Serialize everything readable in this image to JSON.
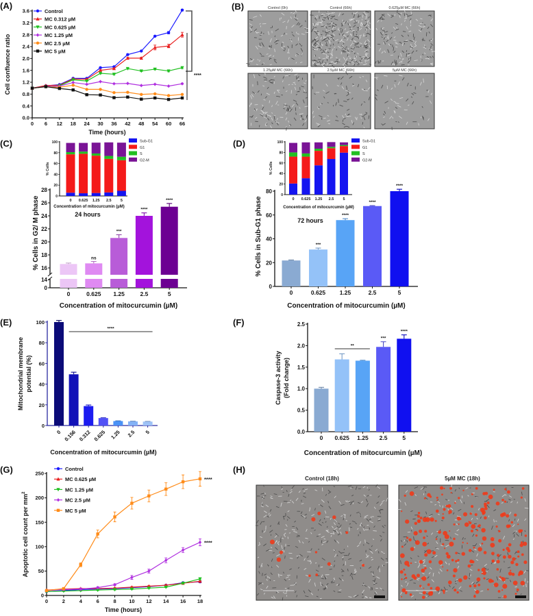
{
  "panels": {
    "labels": [
      "(A)",
      "(B)",
      "(C)",
      "(D)",
      "(E)",
      "(F)",
      "(G)",
      "(H)"
    ]
  },
  "images": {
    "B": {
      "titles": [
        "Control (0h)",
        "Control (66h)",
        "0.625µM MC (66h)",
        "1.25µM MC (66h)",
        "2.5µM MC (66h)",
        "5µM MC (66h)"
      ]
    },
    "H": {
      "titles": [
        "Control (18h)",
        "5µM MC (18h)"
      ]
    }
  },
  "chart_data": [
    {
      "type": "line",
      "panel": "A",
      "xlabel": "Time (hours)",
      "ylabel": "Cell confluence ratio",
      "xlim": [
        0,
        66
      ],
      "ylim": [
        0,
        3.6
      ],
      "xticks": [
        "0",
        "6",
        "12",
        "18",
        "24",
        "30",
        "36",
        "42",
        "48",
        "54",
        "60",
        "66"
      ],
      "yticks": [
        "0.0",
        "0.4",
        "0.8",
        "1.2",
        "1.6",
        "2.0",
        "2.4",
        "2.8",
        "3.2",
        "3.6"
      ],
      "x": [
        0,
        6,
        12,
        18,
        24,
        30,
        36,
        42,
        48,
        54,
        60,
        66
      ],
      "significance": "****",
      "legend_position": "top-left",
      "series": [
        {
          "name": "Control",
          "color": "#1a1aff",
          "marker": "circle",
          "values": [
            1.0,
            1.08,
            1.12,
            1.33,
            1.33,
            1.69,
            1.72,
            2.13,
            2.25,
            2.75,
            2.87,
            3.63
          ],
          "errors": [
            0,
            0.01,
            0.01,
            0.02,
            0.02,
            0.02,
            0.02,
            0.02,
            0.02,
            0.02,
            0.04,
            0.03
          ]
        },
        {
          "name": "MC 0.312 µM",
          "color": "#e82020",
          "marker": "triangle-up",
          "values": [
            1.0,
            1.09,
            1.1,
            1.31,
            1.3,
            1.6,
            1.66,
            2.01,
            2.01,
            2.37,
            2.42,
            2.8
          ],
          "errors": [
            0,
            0.01,
            0.01,
            0.02,
            0.02,
            0.02,
            0.02,
            0.03,
            0.03,
            0.08,
            0.06,
            0.08
          ]
        },
        {
          "name": "MC 0.625 µM",
          "color": "#20c020",
          "marker": "triangle-down",
          "values": [
            1.0,
            1.05,
            1.08,
            1.28,
            1.24,
            1.5,
            1.47,
            1.66,
            1.58,
            1.64,
            1.58,
            1.69
          ],
          "errors": [
            0,
            0.01,
            0.01,
            0.01,
            0.01,
            0.02,
            0.02,
            0.02,
            0.02,
            0.02,
            0.03,
            0.03
          ]
        },
        {
          "name": "MC 1.25 µM",
          "color": "#b030e0",
          "marker": "diamond",
          "values": [
            1.0,
            1.06,
            1.07,
            1.19,
            1.13,
            1.22,
            1.15,
            1.16,
            1.09,
            1.13,
            1.07,
            1.15
          ],
          "errors": [
            0,
            0.01,
            0.01,
            0.01,
            0.01,
            0.01,
            0.01,
            0.01,
            0.01,
            0.01,
            0.01,
            0.02
          ]
        },
        {
          "name": "MC 2.5 µM",
          "color": "#ff8c1a",
          "marker": "circle",
          "values": [
            1.0,
            1.05,
            1.03,
            1.1,
            0.96,
            0.96,
            0.85,
            0.86,
            0.79,
            0.81,
            0.75,
            0.79
          ],
          "errors": [
            0,
            0.01,
            0.01,
            0.01,
            0.01,
            0.01,
            0.01,
            0.01,
            0.01,
            0.01,
            0.02,
            0.02
          ]
        },
        {
          "name": "MC 5 µM",
          "color": "#111111",
          "marker": "square",
          "values": [
            1.0,
            1.05,
            0.99,
            0.94,
            0.78,
            0.77,
            0.68,
            0.7,
            0.63,
            0.67,
            0.62,
            0.67
          ],
          "errors": [
            0,
            0.01,
            0.01,
            0.01,
            0.01,
            0.01,
            0.01,
            0.01,
            0.01,
            0.01,
            0.01,
            0.01
          ]
        }
      ]
    },
    {
      "type": "bar",
      "panel": "C",
      "xlabel": "Concentration of mitocurcumin (µM)",
      "ylabel": "% Cells in G2/ M phase",
      "annotation": "24 hours",
      "categories": [
        "0",
        "0.625",
        "1.25",
        "2.5",
        "5"
      ],
      "values": [
        16.6,
        16.7,
        20.6,
        24.0,
        25.4
      ],
      "errors": [
        0.15,
        0.3,
        0.5,
        0.45,
        0.5
      ],
      "significance": [
        "",
        "ns",
        "***",
        "****",
        "****"
      ],
      "colors": [
        "#ecc6f6",
        "#df8af2",
        "#b85cd8",
        "#a313dc",
        "#6c0092"
      ],
      "ylim": [
        0,
        28
      ],
      "axis_break": [
        14,
        16
      ],
      "yticks": [
        "0",
        "14",
        "16",
        "18",
        "20",
        "22",
        "24",
        "26",
        "28"
      ]
    },
    {
      "type": "bar",
      "stacked": true,
      "panel": "C-inset",
      "xlabel": "Concentration of mitocurcumin (µM)",
      "ylabel": "% Cells",
      "categories": [
        "0",
        "0.625",
        "1.25",
        "2.5",
        "5"
      ],
      "ylim": [
        0,
        100
      ],
      "yticks": [
        "0",
        "20",
        "40",
        "60",
        "80",
        "100"
      ],
      "legend_position": "right",
      "series": [
        {
          "name": "Sub-G1",
          "color": "#1414f0",
          "values": [
            6,
            5,
            5.5,
            6.5,
            9.5
          ]
        },
        {
          "name": "G1",
          "color": "#f41a1a",
          "values": [
            71,
            73,
            69,
            62,
            56.5
          ]
        },
        {
          "name": "S",
          "color": "#22c022",
          "values": [
            4,
            4,
            4,
            5.5,
            6.5
          ]
        },
        {
          "name": "G2-M",
          "color": "#7a1496",
          "values": [
            17,
            16,
            20,
            25,
            26
          ]
        }
      ]
    },
    {
      "type": "bar",
      "panel": "D",
      "xlabel": "Concentration of mitocurcumin (µM)",
      "ylabel": "% Cells in Sub-G1 phase",
      "annotation": "72 hours",
      "categories": [
        "0",
        "0.625",
        "1.25",
        "2.5",
        "5"
      ],
      "values": [
        21.8,
        31.0,
        55.7,
        67.5,
        80.0
      ],
      "errors": [
        0.4,
        1.2,
        1.2,
        0.4,
        1.6
      ],
      "significance": [
        "",
        "***",
        "****",
        "****",
        "****"
      ],
      "colors": [
        "#8aaad2",
        "#94c2f8",
        "#58a4f6",
        "#5a5af6",
        "#1010f0"
      ],
      "ylim": [
        0,
        80
      ],
      "yticks": [
        "0",
        "20",
        "40",
        "60",
        "80"
      ]
    },
    {
      "type": "bar",
      "stacked": true,
      "panel": "D-inset",
      "xlabel": "Concentration of mitocurcumin (µM)",
      "ylabel": "% Cells",
      "categories": [
        "0",
        "0.625",
        "1.25",
        "2.5",
        "5"
      ],
      "ylim": [
        0,
        100
      ],
      "yticks": [
        "0",
        "20",
        "40",
        "60",
        "80",
        "100"
      ],
      "legend_position": "right",
      "series": [
        {
          "name": "Sub-G1",
          "color": "#1414f0",
          "values": [
            21,
            31,
            55.5,
            67.5,
            79.5
          ]
        },
        {
          "name": "G1",
          "color": "#f41a1a",
          "values": [
            51,
            41,
            27.5,
            20.5,
            12.5
          ]
        },
        {
          "name": "S",
          "color": "#22c022",
          "values": [
            8,
            6,
            4,
            2.5,
            2
          ]
        },
        {
          "name": "G2-M",
          "color": "#7a1496",
          "values": [
            18,
            21,
            12,
            9,
            5
          ]
        }
      ]
    },
    {
      "type": "bar",
      "panel": "E",
      "xlabel": "Concentration of mitocurcumin (µM)",
      "ylabel": [
        "Mitochondrial membrane",
        "potential (%)"
      ],
      "categories": [
        "0",
        "0.156",
        "0.312",
        "0.625",
        "1.25",
        "2.5",
        "5"
      ],
      "values": [
        100,
        49.5,
        18.8,
        7.2,
        4.3,
        4.0,
        3.8
      ],
      "errors": [
        1.5,
        2,
        1,
        0.4,
        0.2,
        0.2,
        0.2
      ],
      "colors": [
        "#0b0b78",
        "#1212b8",
        "#1c1cf0",
        "#5252f6",
        "#4a92f6",
        "#84b2f6",
        "#9ec2f6"
      ],
      "ylim": [
        0,
        100
      ],
      "yticks": [
        "0",
        "20",
        "40",
        "60",
        "80",
        "100"
      ],
      "sig_bracket": {
        "label": "****",
        "from": 1,
        "to": 6
      }
    },
    {
      "type": "bar",
      "panel": "F",
      "xlabel": "Concentration of mitocurcumin (µM)",
      "ylabel": [
        "Caspase-3 activity",
        "(Fold change)"
      ],
      "categories": [
        "0",
        "0.625",
        "1.25",
        "2.5",
        "5"
      ],
      "values": [
        1.0,
        1.68,
        1.65,
        1.97,
        2.16
      ],
      "errors": [
        0.03,
        0.13,
        0.01,
        0.12,
        0.09
      ],
      "significance": [
        "",
        "",
        "",
        "***",
        "****"
      ],
      "colors": [
        "#8aaad2",
        "#94c2f8",
        "#58a4f6",
        "#5a5af6",
        "#1010f0"
      ],
      "ylim": [
        0,
        2.5
      ],
      "yticks": [
        "0.0",
        "0.5",
        "1.0",
        "1.5",
        "2.0",
        "2.5"
      ],
      "sig_bracket": {
        "label": "**",
        "from": 1,
        "to": 2
      }
    },
    {
      "type": "line",
      "panel": "G",
      "xlabel": "Time (hours)",
      "ylabel": "Apoptotic cell count per mm",
      "ylabel_sup": "2",
      "xlim": [
        0,
        18
      ],
      "ylim": [
        0,
        250
      ],
      "xticks": [
        "0",
        "2",
        "4",
        "6",
        "8",
        "10",
        "12",
        "14",
        "16",
        "18"
      ],
      "yticks": [
        "0",
        "50",
        "100",
        "150",
        "200",
        "250"
      ],
      "x": [
        0,
        2,
        4,
        6,
        8,
        10,
        12,
        14,
        16,
        18
      ],
      "legend_position": "top-left",
      "series": [
        {
          "name": "Control",
          "color": "#1a1aff",
          "marker": "circle",
          "values": [
            8,
            10,
            12,
            13,
            14,
            16,
            18,
            21,
            26,
            28
          ],
          "errors": [
            1,
            1,
            1,
            1,
            1,
            1,
            1,
            1,
            1,
            2
          ]
        },
        {
          "name": "MC 0.625 µM",
          "color": "#e82020",
          "marker": "triangle-up",
          "values": [
            11,
            13,
            14,
            14,
            15,
            17,
            19,
            21,
            25,
            29
          ],
          "errors": [
            1,
            1,
            1,
            1,
            1,
            1,
            1,
            1,
            1,
            1
          ]
        },
        {
          "name": "MC 1.25 µM",
          "color": "#20c020",
          "marker": "triangle-down",
          "values": [
            8,
            9,
            10,
            11,
            12,
            13,
            15,
            17,
            25,
            34
          ],
          "errors": [
            1,
            1,
            1,
            1,
            1,
            1,
            1,
            1,
            1,
            2
          ]
        },
        {
          "name": "MC 2.5 µM",
          "color": "#b030e0",
          "marker": "diamond",
          "values": [
            10,
            12,
            13,
            16,
            22,
            37,
            50,
            72,
            93,
            109
          ],
          "errors": [
            1,
            1,
            2,
            2,
            2,
            4,
            4,
            5,
            5,
            7
          ],
          "sig": "****"
        },
        {
          "name": "MC 5 µM",
          "color": "#ff8c1a",
          "marker": "square",
          "values": [
            10,
            14,
            63,
            126,
            161,
            189,
            204,
            218,
            233,
            239
          ],
          "errors": [
            1,
            2,
            4,
            8,
            10,
            12,
            12,
            13,
            14,
            15
          ],
          "sig": "****"
        }
      ]
    }
  ]
}
